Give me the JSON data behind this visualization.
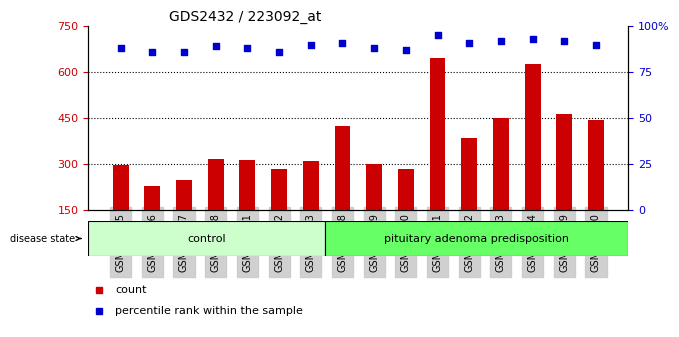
{
  "title": "GDS2432 / 223092_at",
  "samples": [
    "GSM100895",
    "GSM100896",
    "GSM100897",
    "GSM100898",
    "GSM100901",
    "GSM100902",
    "GSM100903",
    "GSM100888",
    "GSM100889",
    "GSM100890",
    "GSM100891",
    "GSM100892",
    "GSM100893",
    "GSM100894",
    "GSM100899",
    "GSM100900"
  ],
  "counts": [
    298,
    230,
    248,
    318,
    315,
    283,
    310,
    425,
    300,
    283,
    645,
    385,
    450,
    625,
    465,
    445
  ],
  "percentiles": [
    88,
    86,
    86,
    89,
    88,
    86,
    90,
    91,
    88,
    87,
    95,
    91,
    92,
    93,
    92,
    90
  ],
  "control_count": 7,
  "disease_count": 9,
  "control_label": "control",
  "disease_label": "pituitary adenoma predisposition",
  "disease_state_label": "disease state",
  "ylim_left": [
    150,
    750
  ],
  "ylim_right": [
    0,
    100
  ],
  "yticks_left": [
    150,
    300,
    450,
    600,
    750
  ],
  "yticks_right": [
    0,
    25,
    50,
    75,
    100
  ],
  "bar_color": "#cc0000",
  "dot_color": "#0000cc",
  "control_bg": "#ccffcc",
  "disease_bg": "#66ff66",
  "grid_color": "#000000",
  "legend_count_label": "count",
  "legend_pct_label": "percentile rank within the sample",
  "bar_width": 0.5
}
